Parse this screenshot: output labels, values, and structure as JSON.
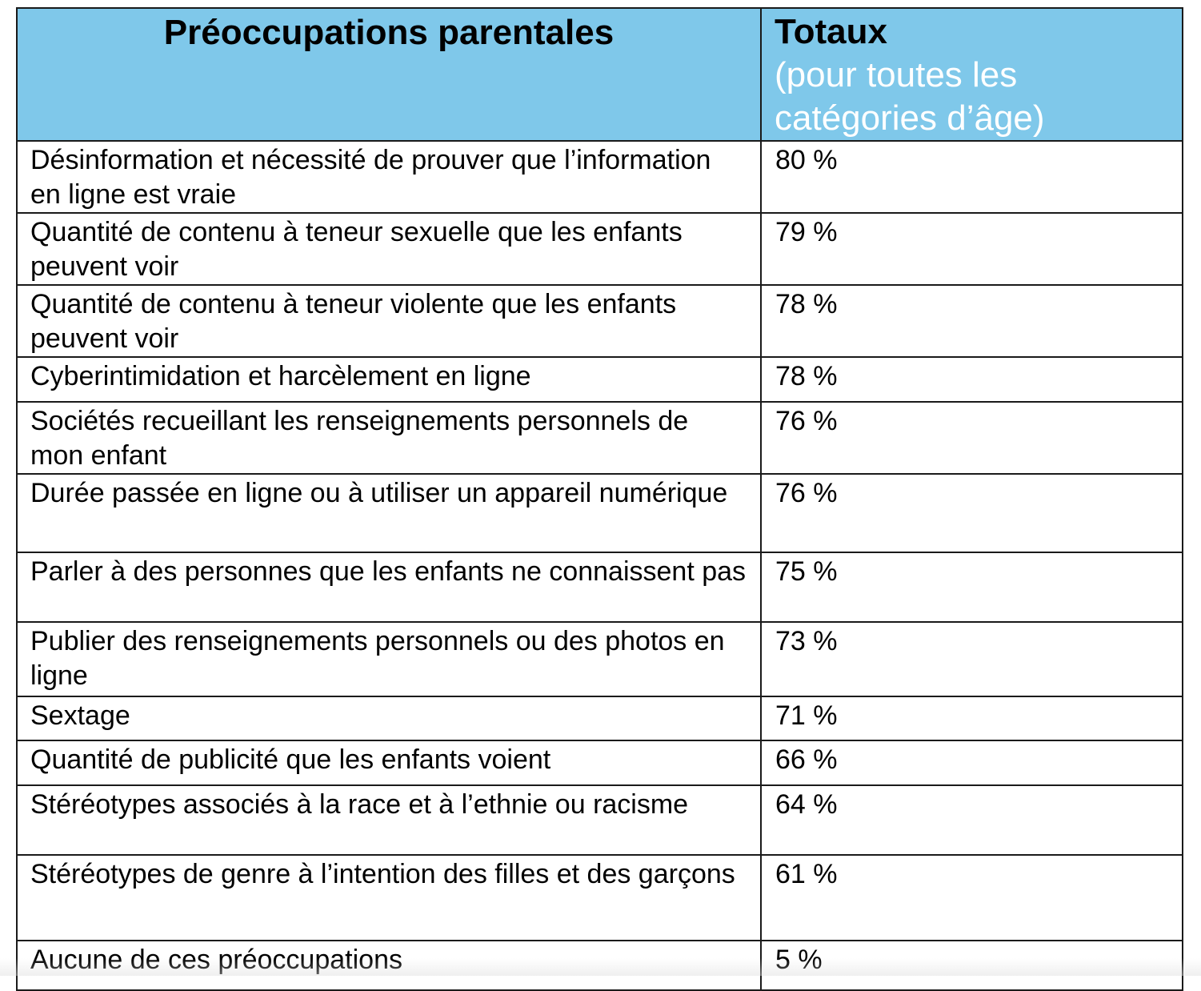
{
  "table": {
    "header": {
      "concern": "Préoccupations parentales",
      "totals_title": "Totaux",
      "totals_sub": "(pour toutes les catégories d’âge)"
    },
    "rows": [
      {
        "concern": "Désinformation et nécessité de prouver que l’information en ligne est vraie",
        "total": "80 %"
      },
      {
        "concern": "Quantité de contenu à teneur sexuelle que les enfants peuvent voir",
        "total": "79 %"
      },
      {
        "concern": "Quantité de contenu à teneur violente que les enfants peuvent voir",
        "total": "78 %"
      },
      {
        "concern": "Cyberintimidation et harcèlement en ligne",
        "total": "78 %"
      },
      {
        "concern": "Sociétés recueillant les renseignements personnels de mon enfant",
        "total": "76 %"
      },
      {
        "concern": "Durée passée en ligne ou à utiliser un appareil numérique",
        "total": "76 %"
      },
      {
        "concern": "Parler à des personnes que les enfants ne connaissent pas",
        "total": "75 %"
      },
      {
        "concern": "Publier des renseignements personnels ou des photos en ligne",
        "total": "73 %"
      },
      {
        "concern": "Sextage",
        "total": "71 %"
      },
      {
        "concern": "Quantité de publicité que les enfants voient",
        "total": "66 %"
      },
      {
        "concern": "Stéréotypes associés à la race et à l’ethnie ou racisme",
        "total": "64 %"
      },
      {
        "concern": "Stéréotypes de genre à l’intention des filles et des garçons",
        "total": "61 %"
      },
      {
        "concern": "Aucune de ces préoccupations",
        "total": "5 %"
      }
    ]
  }
}
